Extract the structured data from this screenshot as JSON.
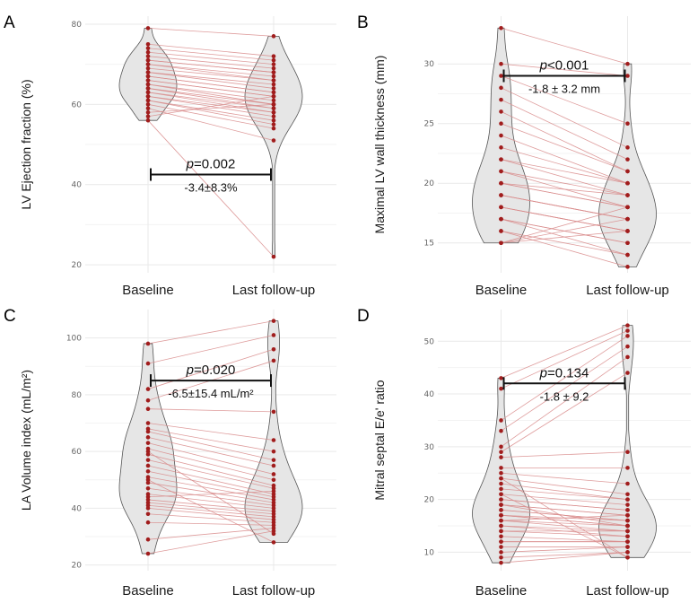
{
  "colors": {
    "point": "#a11d1d",
    "line": "#d98b8b",
    "violin": "#e6e6e6",
    "violin_stroke": "#555555",
    "grid": "#e9e9e9",
    "bracket": "#111111"
  },
  "chart_data": [
    {
      "panel": "A",
      "type": "violin-paired",
      "ylabel": "LV Ejection fraction (%)",
      "categories": [
        "Baseline",
        "Last follow-up"
      ],
      "ylim": [
        18,
        82
      ],
      "yticks": [
        20,
        40,
        60,
        80
      ],
      "p_italic": "p",
      "p_rest": "=0.002",
      "delta": "-3.4±8.3%",
      "bracket_y": 42.5,
      "baseline": [
        79,
        75,
        74,
        73,
        72,
        71,
        71,
        70,
        70,
        69,
        68,
        68,
        67,
        67,
        66,
        66,
        65,
        65,
        64,
        64,
        63,
        63,
        62,
        62,
        61,
        61,
        60,
        59,
        58,
        57,
        56
      ],
      "followup": [
        77,
        72,
        71,
        70,
        69,
        68,
        68,
        67,
        66,
        66,
        65,
        64,
        63,
        63,
        62,
        62,
        61,
        60,
        60,
        59,
        59,
        58,
        58,
        57,
        56,
        55,
        54,
        51,
        60,
        62,
        22
      ]
    },
    {
      "panel": "B",
      "type": "violin-paired",
      "ylabel": "Maximal LV wall thickness (mm)",
      "categories": [
        "Baseline",
        "Last follow-up"
      ],
      "ylim": [
        12.5,
        34
      ],
      "yticks": [
        15,
        20,
        25,
        30
      ],
      "p_italic": "p",
      "p_rest": "<0.001",
      "delta": "-1.8 ± 3.2 mm",
      "bracket_y": 29,
      "baseline": [
        33,
        30,
        29,
        28,
        27,
        26,
        25,
        24,
        23,
        22,
        21,
        21,
        20,
        20,
        19,
        19,
        19,
        18,
        18,
        18,
        17,
        17,
        17,
        16,
        16,
        15,
        15,
        15,
        20,
        22
      ],
      "followup": [
        30,
        29,
        25,
        23,
        22,
        21,
        21,
        20,
        20,
        19,
        19,
        18,
        18,
        18,
        17,
        17,
        17,
        16,
        16,
        16,
        15,
        15,
        14,
        14,
        13,
        16,
        17,
        18,
        19,
        20
      ]
    },
    {
      "panel": "C",
      "type": "violin-paired",
      "ylabel": "LA Volume index (mL/m²)",
      "categories": [
        "Baseline",
        "Last follow-up"
      ],
      "ylim": [
        18,
        110
      ],
      "yticks": [
        20,
        40,
        60,
        80,
        100
      ],
      "p_italic": "p",
      "p_rest": "=0.020",
      "delta": "-6.5±15.4 mL/m²",
      "bracket_y": 85,
      "baseline": [
        98,
        91,
        82,
        78,
        75,
        70,
        68,
        67,
        65,
        63,
        61,
        59,
        57,
        55,
        53,
        51,
        49,
        47,
        45,
        43,
        42,
        41,
        40,
        38,
        35,
        29,
        24,
        60,
        50,
        44
      ],
      "followup": [
        106,
        101,
        96,
        92,
        74,
        64,
        60,
        57,
        55,
        52,
        50,
        48,
        47,
        45,
        44,
        43,
        42,
        41,
        40,
        39,
        38,
        37,
        36,
        35,
        34,
        33,
        32,
        31,
        28,
        46
      ]
    },
    {
      "panel": "D",
      "type": "violin-paired",
      "ylabel": "Mitral septal E/e' ratio",
      "categories": [
        "Baseline",
        "Last follow-up"
      ],
      "ylim": [
        6.5,
        56
      ],
      "yticks": [
        10,
        20,
        30,
        40,
        50
      ],
      "p_italic": "p",
      "p_rest": "=0.134",
      "delta": "-1.8 ± 9.2",
      "bracket_y": 42,
      "baseline": [
        43,
        41,
        35,
        33,
        30,
        29,
        28,
        26,
        25,
        24,
        23,
        22,
        21,
        20,
        20,
        19,
        19,
        18,
        18,
        17,
        17,
        16,
        16,
        15,
        15,
        14,
        13,
        12,
        11,
        10,
        9,
        8,
        24,
        21,
        19,
        17,
        16,
        14,
        12
      ],
      "followup": [
        53,
        52,
        51,
        49,
        47,
        44,
        29,
        26,
        23,
        21,
        20,
        20,
        19,
        18,
        18,
        17,
        17,
        16,
        16,
        15,
        15,
        15,
        14,
        14,
        13,
        13,
        12,
        12,
        11,
        11,
        10,
        10,
        9,
        9,
        15,
        16,
        17,
        14,
        12
      ]
    }
  ]
}
